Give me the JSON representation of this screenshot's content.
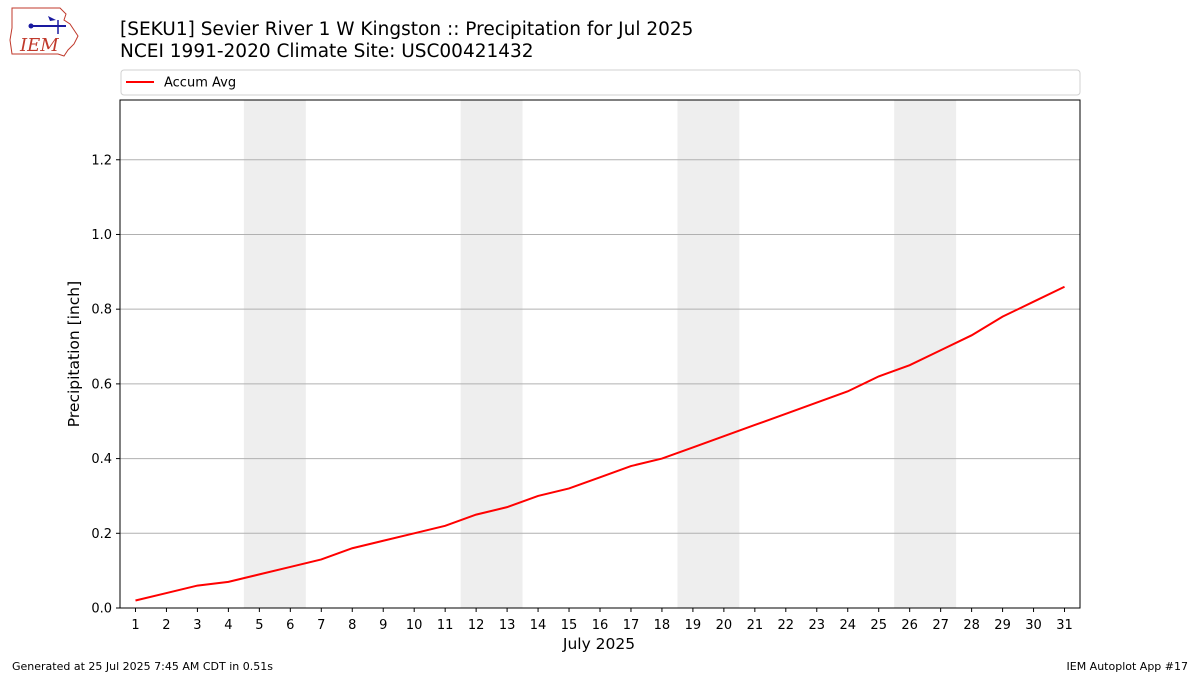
{
  "title_line1": "[SEKU1] Sevier River 1 W Kingston :: Precipitation for Jul 2025",
  "title_line2": "NCEI 1991-2020 Climate Site: USC00421432",
  "logo_text": "IEM",
  "footer_left": "Generated at 25 Jul 2025 7:45 AM CDT in 0.51s",
  "footer_right": "IEM Autoplot App #17",
  "colors": {
    "line": "#ff0000",
    "weekend": "#eeeeee",
    "grid": "#b0b0b0"
  },
  "chart_data": {
    "type": "line",
    "xlabel": "July 2025",
    "ylabel": "Precipitation [inch]",
    "xlim": [
      0.5,
      31.5
    ],
    "ylim": [
      0,
      1.36
    ],
    "y_ticks": [
      0.0,
      0.2,
      0.4,
      0.6,
      0.8,
      1.0,
      1.2
    ],
    "x_ticks": [
      1,
      2,
      3,
      4,
      5,
      6,
      7,
      8,
      9,
      10,
      11,
      12,
      13,
      14,
      15,
      16,
      17,
      18,
      19,
      20,
      21,
      22,
      23,
      24,
      25,
      26,
      27,
      28,
      29,
      30,
      31
    ],
    "grid": "y",
    "legend": "top, above plot",
    "weekend_bands": [
      [
        4.5,
        6.5
      ],
      [
        11.5,
        13.5
      ],
      [
        18.5,
        20.5
      ],
      [
        25.5,
        27.5
      ]
    ],
    "series": [
      {
        "name": "Accum Avg",
        "x": [
          1,
          2,
          3,
          4,
          5,
          6,
          7,
          8,
          9,
          10,
          11,
          12,
          13,
          14,
          15,
          16,
          17,
          18,
          19,
          20,
          21,
          22,
          23,
          24,
          25,
          26,
          27,
          28,
          29,
          30,
          31
        ],
        "values": [
          0.02,
          0.04,
          0.06,
          0.07,
          0.09,
          0.11,
          0.13,
          0.16,
          0.18,
          0.2,
          0.22,
          0.25,
          0.27,
          0.3,
          0.32,
          0.35,
          0.38,
          0.4,
          0.43,
          0.46,
          0.49,
          0.52,
          0.55,
          0.58,
          0.62,
          0.65,
          0.69,
          0.73,
          0.78,
          0.82,
          0.86
        ]
      }
    ]
  }
}
